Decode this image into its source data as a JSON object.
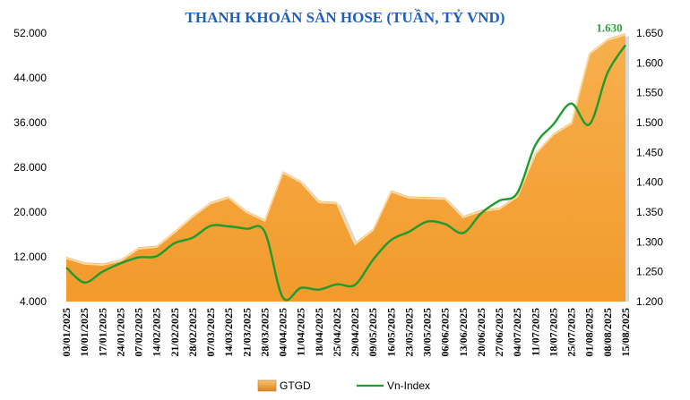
{
  "chart_data": {
    "type": "area",
    "title": "THANH KHOẢN SÀN HOSE (TUẦN, TỶ VND)",
    "x": [
      "03/01/2025",
      "10/01/2025",
      "17/01/2025",
      "24/01/2025",
      "07/02/2025",
      "14/02/2025",
      "21/02/2025",
      "28/02/2025",
      "07/03/2025",
      "14/03/2025",
      "21/03/2025",
      "28/03/2025",
      "04/04/2025",
      "11/04/2025",
      "18/04/2025",
      "25/04/2025",
      "29/04/2025",
      "09/05/2025",
      "16/05/2025",
      "23/05/2025",
      "30/05/2025",
      "06/06/2025",
      "13/06/2025",
      "20/06/2025",
      "27/06/2025",
      "04/07/2025",
      "11/07/2025",
      "18/07/2025",
      "25/07/2025",
      "01/08/2025",
      "08/08/2025",
      "15/08/2025"
    ],
    "series": [
      {
        "name": "GTGD",
        "type": "area",
        "axis": "left",
        "color": "#f5a53a",
        "values": [
          12000,
          11000,
          10800,
          11500,
          13700,
          14000,
          16600,
          19400,
          21800,
          22800,
          20200,
          18700,
          27300,
          25600,
          22000,
          21800,
          14500,
          17000,
          23900,
          22800,
          22700,
          22600,
          19300,
          20400,
          20800,
          23000,
          30600,
          34100,
          36100,
          48500,
          51000,
          52000
        ]
      },
      {
        "name": "Vn-Index",
        "type": "line",
        "axis": "right",
        "color": "#1e9b2e",
        "values": [
          1257,
          1232,
          1250,
          1264,
          1274,
          1276,
          1298,
          1307,
          1327,
          1326,
          1322,
          1317,
          1207,
          1223,
          1220,
          1229,
          1228,
          1270,
          1303,
          1317,
          1334,
          1330,
          1315,
          1348,
          1369,
          1382,
          1462,
          1497,
          1532,
          1497,
          1583,
          1630
        ]
      }
    ],
    "y_left": {
      "min": 4000,
      "max": 52000,
      "ticks": [
        "52.000",
        "44.000",
        "36.000",
        "28.000",
        "20.000",
        "12.000",
        "4.000"
      ],
      "tick_values": [
        52000,
        44000,
        36000,
        28000,
        20000,
        12000,
        4000
      ]
    },
    "y_right": {
      "min": 1200,
      "max": 1650,
      "ticks": [
        "1.650",
        "1.600",
        "1.550",
        "1.500",
        "1.450",
        "1.400",
        "1.350",
        "1.300",
        "1.250",
        "1.200"
      ],
      "tick_values": [
        1650,
        1600,
        1550,
        1500,
        1450,
        1400,
        1350,
        1300,
        1250,
        1200
      ]
    },
    "annotation": {
      "text": "1.630",
      "series": "Vn-Index",
      "index": 31
    },
    "legend": {
      "position": "bottom",
      "items": [
        "GTGD",
        "Vn-Index"
      ]
    },
    "grid": false
  }
}
